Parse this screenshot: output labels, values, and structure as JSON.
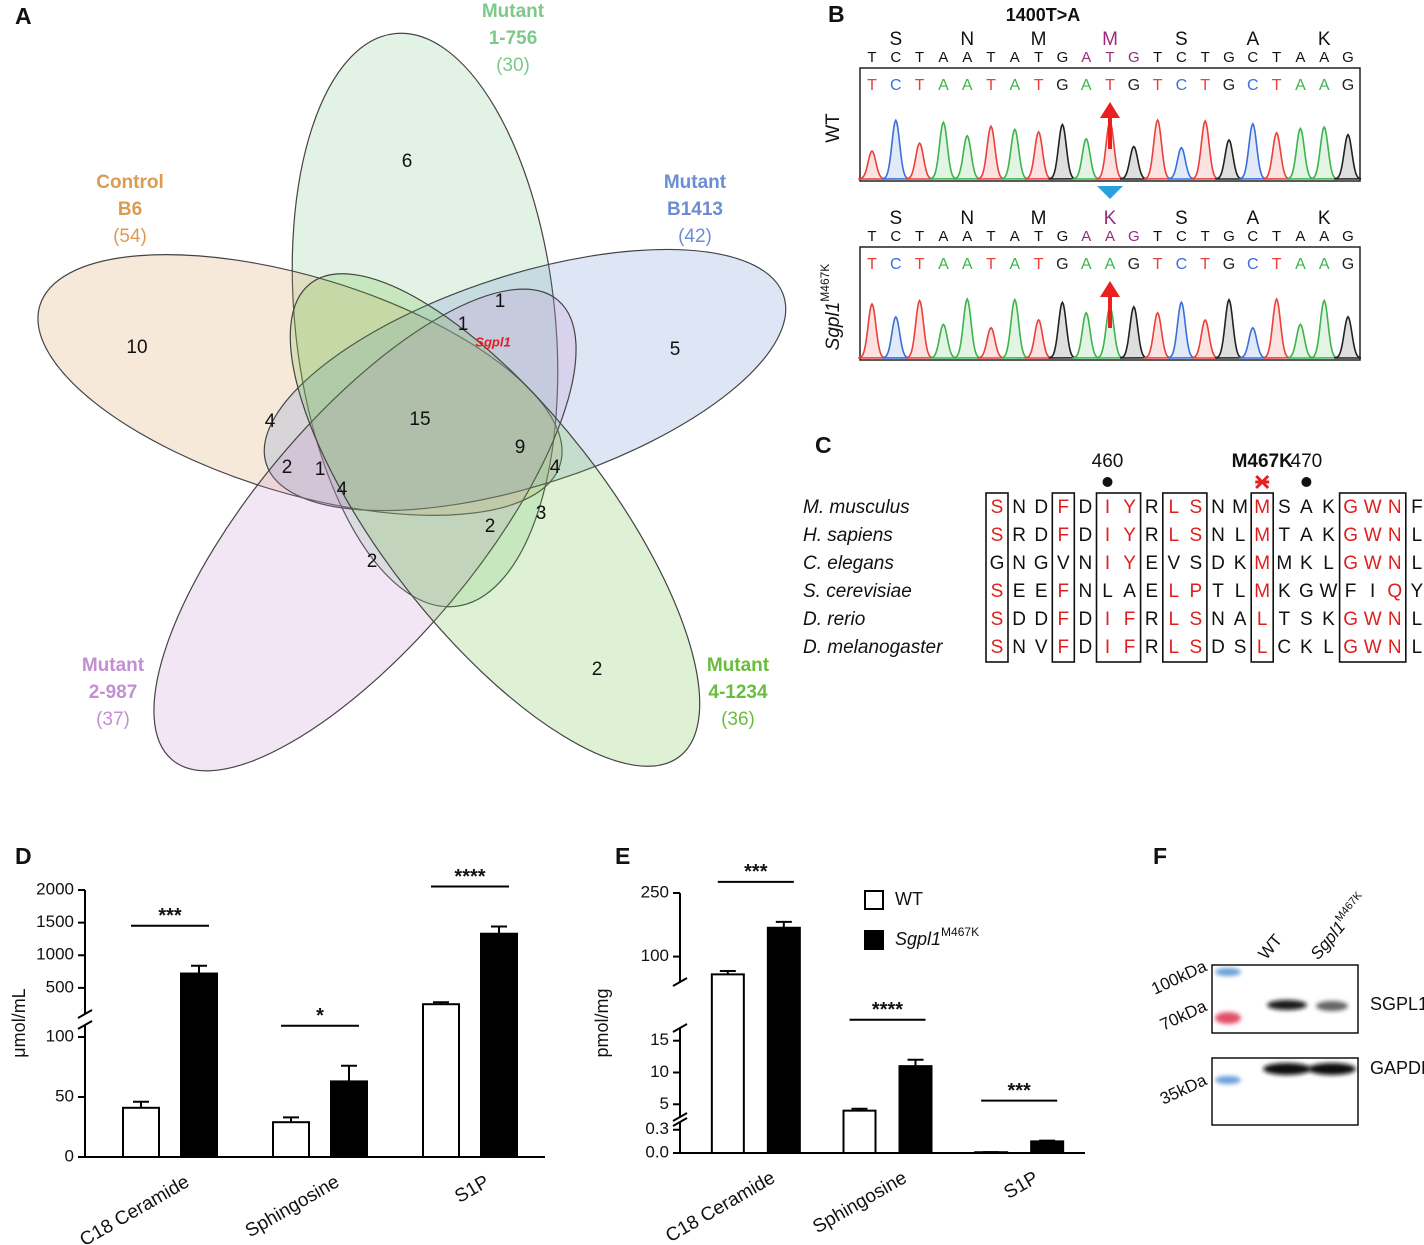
{
  "venn": {
    "label": "A",
    "sets": [
      {
        "name": [
          "Mutant",
          "1-756"
        ],
        "count": "(30)",
        "color": "#7dc98a"
      },
      {
        "name": [
          "Control",
          "B6"
        ],
        "count": "(54)",
        "color": "#dc9a52"
      },
      {
        "name": [
          "Mutant",
          "B1413"
        ],
        "count": "(42)",
        "color": "#6b8ed2"
      },
      {
        "name": [
          "Mutant",
          "2-987"
        ],
        "count": "(37)",
        "color": "#c28fd0"
      },
      {
        "name": [
          "Mutant",
          "4-1234"
        ],
        "count": "(36)",
        "color": "#69bd3c"
      }
    ],
    "regions": [
      6,
      10,
      5,
      2,
      1,
      1,
      15,
      4,
      2,
      1,
      9,
      4,
      4,
      3,
      2,
      2
    ],
    "gene": "Sgpl1"
  },
  "sequencing": {
    "label": "B",
    "mutation": "1400T>A",
    "highlight_codon": 3,
    "tracks": [
      {
        "name": "WT",
        "amino_acids": [
          "S",
          "N",
          "M",
          "M",
          "S",
          "A",
          "K"
        ],
        "bases": [
          "T",
          "C",
          "T",
          "A",
          "A",
          "T",
          "A",
          "T",
          "G",
          "A",
          "T",
          "G",
          "T",
          "C",
          "T",
          "G",
          "C",
          "T",
          "A",
          "A",
          "G"
        ]
      },
      {
        "name": "Sgpl1",
        "name_superscript": "M467K",
        "amino_acids": [
          "S",
          "N",
          "M",
          "K",
          "S",
          "A",
          "K"
        ],
        "bases": [
          "T",
          "C",
          "T",
          "A",
          "A",
          "T",
          "A",
          "T",
          "G",
          "A",
          "A",
          "G",
          "T",
          "C",
          "T",
          "G",
          "C",
          "T",
          "A",
          "A",
          "G"
        ]
      }
    ]
  },
  "alignment": {
    "label": "C",
    "markers": [
      {
        "label": "460",
        "column": 5
      },
      {
        "label": "M467K",
        "column": 12
      },
      {
        "label": "470",
        "column": 14
      }
    ],
    "boxes": [
      [
        0,
        0
      ],
      [
        3,
        3
      ],
      [
        5,
        6
      ],
      [
        8,
        9
      ],
      [
        12,
        12
      ],
      [
        16,
        18
      ]
    ],
    "rows": [
      {
        "species": "M. musculus",
        "residues": [
          "S",
          "N",
          "D",
          "F",
          "D",
          "I",
          "Y",
          "R",
          "L",
          "S",
          "N",
          "M",
          "M",
          "S",
          "A",
          "K",
          "G",
          "W",
          "N",
          "F"
        ],
        "highlight": [
          0,
          3,
          5,
          6,
          8,
          9,
          12,
          16,
          17,
          18
        ]
      },
      {
        "species": "H. sapiens",
        "residues": [
          "S",
          "R",
          "D",
          "F",
          "D",
          "I",
          "Y",
          "R",
          "L",
          "S",
          "N",
          "L",
          "M",
          "T",
          "A",
          "K",
          "G",
          "W",
          "N",
          "L"
        ],
        "highlight": [
          0,
          3,
          5,
          6,
          8,
          9,
          12,
          16,
          17,
          18
        ]
      },
      {
        "species": "C. elegans",
        "residues": [
          "G",
          "N",
          "G",
          "V",
          "N",
          "I",
          "Y",
          "E",
          "V",
          "S",
          "D",
          "K",
          "M",
          "M",
          "K",
          "L",
          "G",
          "W",
          "N",
          "L"
        ],
        "highlight": [
          5,
          6,
          12,
          16,
          17,
          18
        ]
      },
      {
        "species": "S. cerevisiae",
        "residues": [
          "S",
          "E",
          "E",
          "F",
          "N",
          "L",
          "A",
          "E",
          "L",
          "P",
          "T",
          "L",
          "M",
          "K",
          "G",
          "W",
          "F",
          "I",
          "Q",
          "Y"
        ],
        "highlight": [
          0,
          3,
          8,
          9,
          12,
          18
        ]
      },
      {
        "species": "D. rerio",
        "residues": [
          "S",
          "D",
          "D",
          "F",
          "D",
          "I",
          "F",
          "R",
          "L",
          "S",
          "N",
          "A",
          "L",
          "T",
          "S",
          "K",
          "G",
          "W",
          "N",
          "L"
        ],
        "highlight": [
          0,
          3,
          5,
          6,
          8,
          9,
          12,
          16,
          17,
          18
        ]
      },
      {
        "species": "D. melanogaster",
        "residues": [
          "S",
          "N",
          "V",
          "F",
          "D",
          "I",
          "F",
          "R",
          "L",
          "S",
          "D",
          "S",
          "L",
          "C",
          "K",
          "L",
          "G",
          "W",
          "N",
          "L"
        ],
        "highlight": [
          0,
          3,
          5,
          6,
          8,
          9,
          12,
          16,
          17,
          18
        ]
      }
    ]
  },
  "chart_data": [
    {
      "type": "bar",
      "label": "D",
      "ylabel": "μmol/mL",
      "categories": [
        "C18 Ceramide",
        "Sphingosine",
        "S1P"
      ],
      "series": [
        {
          "color": "#ffffff",
          "values": [
            41,
            29,
            250
          ],
          "errors": [
            5,
            4,
            30
          ]
        },
        {
          "color": "#000000",
          "values": [
            720,
            63,
            1330
          ],
          "errors": [
            120,
            13,
            110
          ]
        }
      ],
      "y_segments": [
        {
          "ylim": [
            0,
            110
          ],
          "yticks": [
            0,
            50,
            100
          ]
        },
        {
          "ylim": [
            100,
            2000
          ],
          "yticks": [
            500,
            1000,
            1500,
            2000
          ]
        }
      ],
      "annotations": [
        {
          "text": "***",
          "category": 0
        },
        {
          "text": "*",
          "category": 1
        },
        {
          "text": "****",
          "category": 2
        }
      ]
    },
    {
      "type": "bar",
      "label": "E",
      "ylabel": "pmol/mg",
      "legend": "upper right",
      "categories": [
        "C18 Ceramide",
        "Sphingosine",
        "S1P"
      ],
      "series": [
        {
          "name": "WT",
          "color": "#ffffff",
          "values": [
            58,
            4,
            0.01
          ],
          "errors": [
            8,
            0.3,
            0.002
          ]
        },
        {
          "name": "Sgpl1",
          "name_superscript": "M467K",
          "color": "#000000",
          "values": [
            168,
            11,
            0.15
          ],
          "errors": [
            14,
            1,
            0.01
          ]
        }
      ],
      "y_segments": [
        {
          "ylim": [
            0,
            0.4
          ],
          "yticks": [
            {
              "value": 0,
              "label": "0.0"
            },
            0.3
          ]
        },
        {
          "ylim": [
            3,
            17
          ],
          "yticks": [
            5,
            10,
            15
          ]
        },
        {
          "ylim": [
            40,
            250
          ],
          "yticks": [
            100,
            250
          ]
        }
      ],
      "annotations": [
        {
          "text": "***",
          "category": 0
        },
        {
          "text": "****",
          "category": 1
        },
        {
          "text": "***",
          "category": 2
        }
      ]
    }
  ],
  "blot": {
    "label": "F",
    "lanes": [
      {
        "name": "WT"
      },
      {
        "name": "Sgpl1",
        "name_superscript": "M467K"
      }
    ],
    "markers": [
      "100kDa",
      "70kDa",
      "35kDa"
    ],
    "proteins": [
      "SGPL1",
      "GAPDH"
    ]
  }
}
